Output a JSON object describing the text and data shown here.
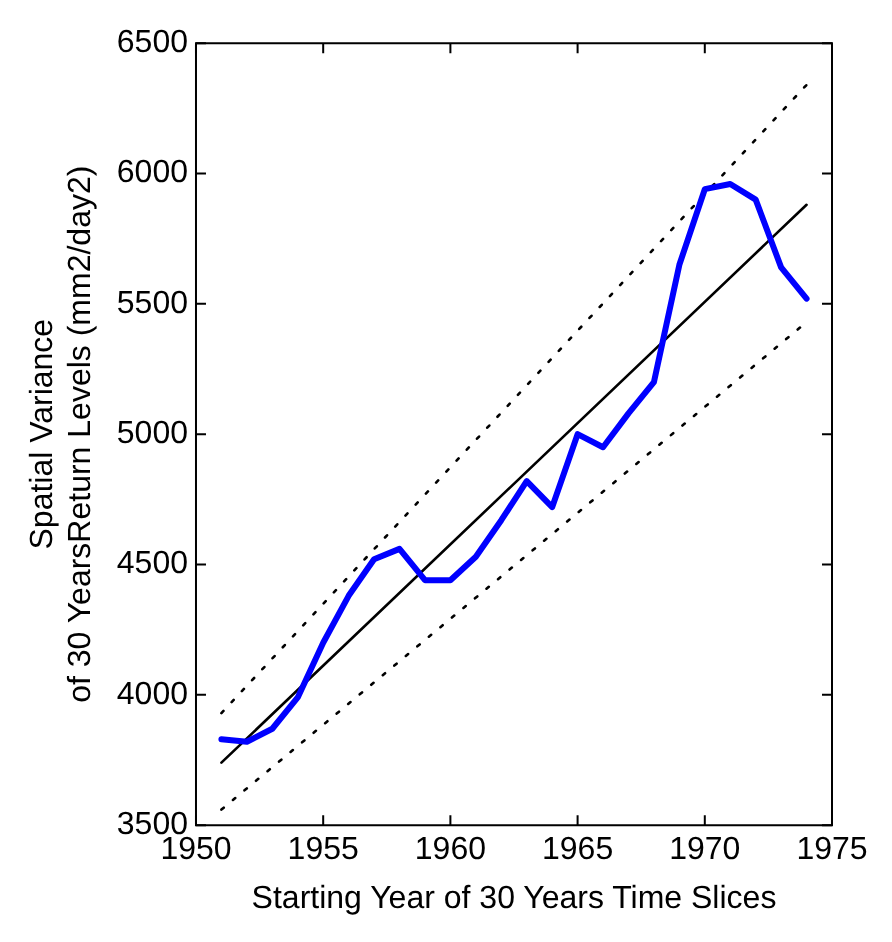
{
  "chart_data": {
    "type": "line",
    "xlabel": "Starting Year of 30 Years Time Slices",
    "ylabel": "Spatial Variance\nof 30 YearsReturn Levels (mm2/day2)",
    "x": [
      1951,
      1952,
      1953,
      1954,
      1955,
      1956,
      1957,
      1958,
      1959,
      1960,
      1961,
      1962,
      1963,
      1964,
      1965,
      1966,
      1967,
      1968,
      1969,
      1970,
      1971,
      1972,
      1973,
      1974
    ],
    "xlim": [
      1950,
      1975
    ],
    "xticks": [
      1950,
      1955,
      1960,
      1965,
      1970,
      1975
    ],
    "ylim": [
      3500,
      6500
    ],
    "yticks": [
      3500,
      4000,
      4500,
      5000,
      5500,
      6000,
      6500
    ],
    "grid": false,
    "legend": false,
    "marker": "none",
    "series": [
      {
        "color": "#0000ff",
        "line_style": "solid",
        "values": [
          3830,
          3820,
          3870,
          3990,
          4200,
          4380,
          4520,
          4560,
          4440,
          4440,
          4530,
          4670,
          4820,
          4720,
          5000,
          4950,
          5080,
          5200,
          5650,
          5940,
          5960,
          5900,
          5640,
          5520
        ]
      },
      {
        "color": "#000000",
        "line_style": "solid",
        "values": [
          3740,
          null,
          null,
          null,
          null,
          null,
          null,
          null,
          null,
          null,
          null,
          null,
          null,
          null,
          null,
          null,
          null,
          null,
          null,
          null,
          null,
          null,
          null,
          5880
        ]
      },
      {
        "color": "#000000",
        "line_style": "dotted",
        "values": [
          3930,
          null,
          null,
          null,
          null,
          null,
          null,
          null,
          null,
          null,
          null,
          null,
          null,
          null,
          null,
          null,
          null,
          null,
          null,
          null,
          null,
          null,
          null,
          6340
        ]
      },
      {
        "color": "#000000",
        "line_style": "dotted",
        "values": [
          3560,
          null,
          null,
          null,
          null,
          null,
          null,
          null,
          null,
          null,
          null,
          null,
          null,
          null,
          null,
          null,
          null,
          null,
          null,
          null,
          null,
          null,
          null,
          5430
        ]
      }
    ]
  }
}
